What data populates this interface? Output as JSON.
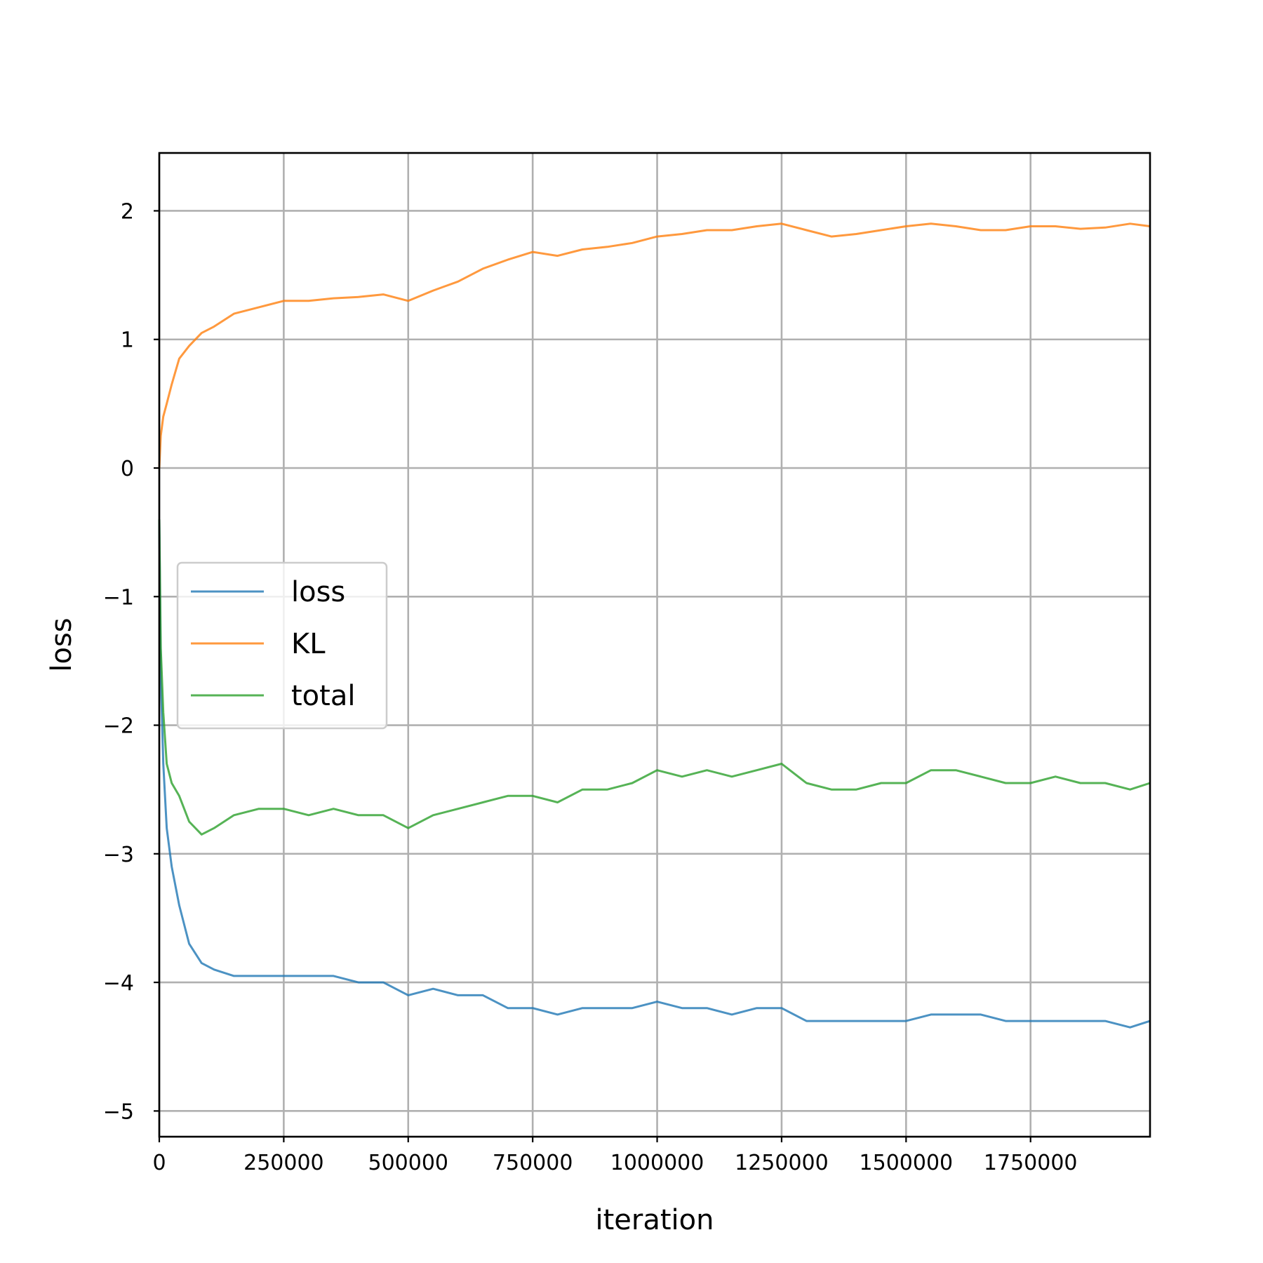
{
  "chart_data": {
    "type": "line",
    "xlabel": "iteration",
    "ylabel": "loss",
    "xlim": [
      0,
      1990000
    ],
    "ylim": [
      -5.2,
      2.45
    ],
    "grid": true,
    "legend_position": "center-left",
    "x_ticks": [
      0,
      250000,
      500000,
      750000,
      1000000,
      1250000,
      1500000,
      1750000
    ],
    "x_tick_labels": [
      "0",
      "250000",
      "500000",
      "750000",
      "1000000",
      "1250000",
      "1500000",
      "1750000"
    ],
    "y_ticks": [
      2,
      1,
      0,
      -1,
      -2,
      -3,
      -4,
      -5
    ],
    "y_tick_labels": [
      "2",
      "1",
      "0",
      "−1",
      "−2",
      "−3",
      "−4",
      "−5"
    ],
    "series": [
      {
        "name": "loss",
        "color": "#1f77b4",
        "x": [
          0,
          3000,
          8000,
          15000,
          25000,
          40000,
          60000,
          85000,
          110000,
          150000,
          200000,
          250000,
          300000,
          350000,
          400000,
          450000,
          500000,
          550000,
          600000,
          650000,
          700000,
          750000,
          800000,
          850000,
          900000,
          950000,
          1000000,
          1050000,
          1100000,
          1150000,
          1200000,
          1250000,
          1300000,
          1350000,
          1400000,
          1450000,
          1500000,
          1550000,
          1600000,
          1650000,
          1700000,
          1750000,
          1800000,
          1850000,
          1900000,
          1950000,
          1990000
        ],
        "y": [
          -0.4,
          -1.6,
          -2.3,
          -2.8,
          -3.1,
          -3.4,
          -3.7,
          -3.85,
          -3.9,
          -3.95,
          -3.95,
          -3.95,
          -3.95,
          -3.95,
          -4.0,
          -4.0,
          -4.1,
          -4.05,
          -4.1,
          -4.1,
          -4.2,
          -4.2,
          -4.25,
          -4.2,
          -4.2,
          -4.2,
          -4.15,
          -4.2,
          -4.2,
          -4.25,
          -4.2,
          -4.2,
          -4.3,
          -4.3,
          -4.3,
          -4.3,
          -4.3,
          -4.25,
          -4.25,
          -4.25,
          -4.3,
          -4.3,
          -4.3,
          -4.3,
          -4.3,
          -4.35,
          -4.3
        ]
      },
      {
        "name": "KL",
        "color": "#ff7f0e",
        "x": [
          0,
          3000,
          8000,
          15000,
          25000,
          40000,
          60000,
          85000,
          110000,
          150000,
          200000,
          250000,
          300000,
          350000,
          400000,
          450000,
          500000,
          550000,
          600000,
          650000,
          700000,
          750000,
          800000,
          850000,
          900000,
          950000,
          1000000,
          1050000,
          1100000,
          1150000,
          1200000,
          1250000,
          1300000,
          1350000,
          1400000,
          1450000,
          1500000,
          1550000,
          1600000,
          1650000,
          1700000,
          1750000,
          1800000,
          1850000,
          1900000,
          1950000,
          1990000
        ],
        "y": [
          0.0,
          0.25,
          0.4,
          0.5,
          0.65,
          0.85,
          0.95,
          1.05,
          1.1,
          1.2,
          1.25,
          1.3,
          1.3,
          1.32,
          1.33,
          1.35,
          1.3,
          1.38,
          1.45,
          1.55,
          1.62,
          1.68,
          1.65,
          1.7,
          1.72,
          1.75,
          1.8,
          1.82,
          1.85,
          1.85,
          1.88,
          1.9,
          1.85,
          1.8,
          1.82,
          1.85,
          1.88,
          1.9,
          1.88,
          1.85,
          1.85,
          1.88,
          1.88,
          1.86,
          1.87,
          1.9,
          1.88
        ]
      },
      {
        "name": "total",
        "color": "#2ca02c",
        "x": [
          0,
          3000,
          8000,
          15000,
          25000,
          40000,
          60000,
          85000,
          110000,
          150000,
          200000,
          250000,
          300000,
          350000,
          400000,
          450000,
          500000,
          550000,
          600000,
          650000,
          700000,
          750000,
          800000,
          850000,
          900000,
          950000,
          1000000,
          1050000,
          1100000,
          1150000,
          1200000,
          1250000,
          1300000,
          1350000,
          1400000,
          1450000,
          1500000,
          1550000,
          1600000,
          1650000,
          1700000,
          1750000,
          1800000,
          1850000,
          1900000,
          1950000,
          1990000
        ],
        "y": [
          -0.4,
          -1.4,
          -1.9,
          -2.3,
          -2.45,
          -2.55,
          -2.75,
          -2.85,
          -2.8,
          -2.7,
          -2.65,
          -2.65,
          -2.7,
          -2.65,
          -2.7,
          -2.7,
          -2.8,
          -2.7,
          -2.65,
          -2.6,
          -2.55,
          -2.55,
          -2.6,
          -2.5,
          -2.5,
          -2.45,
          -2.35,
          -2.4,
          -2.35,
          -2.4,
          -2.35,
          -2.3,
          -2.45,
          -2.5,
          -2.5,
          -2.45,
          -2.45,
          -2.35,
          -2.35,
          -2.4,
          -2.45,
          -2.45,
          -2.4,
          -2.45,
          -2.45,
          -2.5,
          -2.45
        ]
      }
    ]
  }
}
